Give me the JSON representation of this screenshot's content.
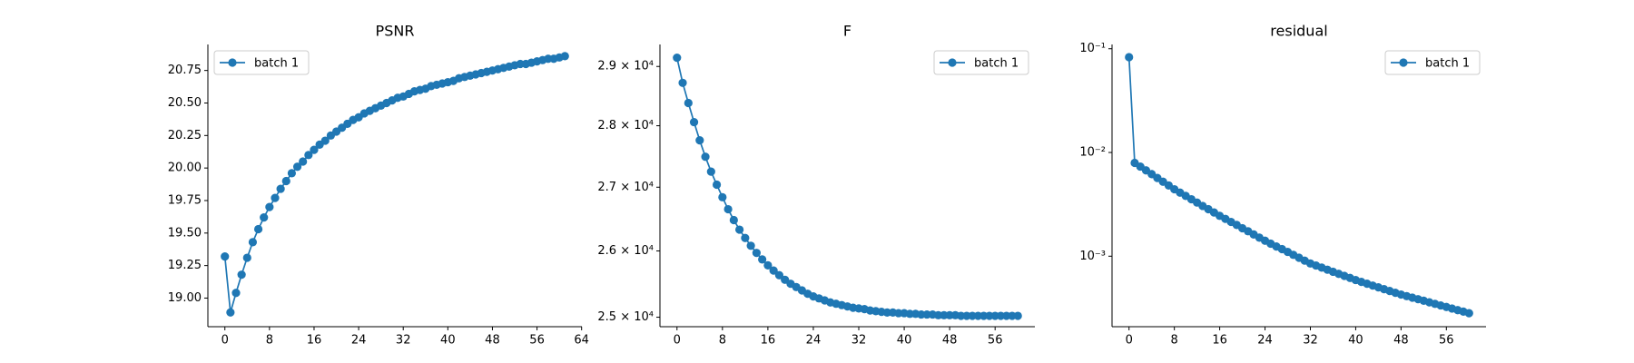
{
  "chart_data": [
    {
      "type": "line",
      "title": "PSNR",
      "legend": "upper left",
      "yscale": "linear",
      "x": [
        0,
        1,
        2,
        3,
        4,
        5,
        6,
        7,
        8,
        9,
        10,
        11,
        12,
        13,
        14,
        15,
        16,
        17,
        18,
        19,
        20,
        21,
        22,
        23,
        24,
        25,
        26,
        27,
        28,
        29,
        30,
        31,
        32,
        33,
        34,
        35,
        36,
        37,
        38,
        39,
        40,
        41,
        42,
        43,
        44,
        45,
        46,
        47,
        48,
        49,
        50,
        51,
        52,
        53,
        54,
        55,
        56,
        57,
        58,
        59,
        60,
        61
      ],
      "series": [
        {
          "name": "batch 1",
          "color": "#1f77b4",
          "values": [
            19.32,
            18.89,
            19.04,
            19.18,
            19.31,
            19.43,
            19.53,
            19.62,
            19.7,
            19.77,
            19.84,
            19.9,
            19.96,
            20.01,
            20.05,
            20.1,
            20.14,
            20.18,
            20.21,
            20.25,
            20.28,
            20.31,
            20.34,
            20.37,
            20.39,
            20.42,
            20.44,
            20.46,
            20.48,
            20.5,
            20.52,
            20.54,
            20.55,
            20.57,
            20.59,
            20.6,
            20.61,
            20.63,
            20.64,
            20.65,
            20.66,
            20.67,
            20.69,
            20.7,
            20.71,
            20.72,
            20.73,
            20.74,
            20.75,
            20.76,
            20.77,
            20.78,
            20.79,
            20.8,
            20.8,
            20.81,
            20.82,
            20.83,
            20.84,
            20.84,
            20.85,
            20.86
          ]
        }
      ],
      "xlim": [
        -3.05,
        64.05
      ],
      "xticks": [
        0,
        8,
        16,
        24,
        32,
        40,
        48,
        56,
        64
      ],
      "ylim": [
        18.78,
        20.95
      ],
      "yticks": [
        {
          "value": 19,
          "label": "19.00"
        },
        19.25,
        {
          "value": 19.5,
          "label": "19.50"
        },
        19.75,
        {
          "value": 20,
          "label": "20.00"
        },
        20.25,
        {
          "value": 20.5,
          "label": "20.50"
        },
        20.75
      ]
    },
    {
      "type": "line",
      "title": "F",
      "legend": "upper right",
      "yscale": "log",
      "x": [
        0,
        1,
        2,
        3,
        4,
        5,
        6,
        7,
        8,
        9,
        10,
        11,
        12,
        13,
        14,
        15,
        16,
        17,
        18,
        19,
        20,
        21,
        22,
        23,
        24,
        25,
        26,
        27,
        28,
        29,
        30,
        31,
        32,
        33,
        34,
        35,
        36,
        37,
        38,
        39,
        40,
        41,
        42,
        43,
        44,
        45,
        46,
        47,
        48,
        49,
        50,
        51,
        52,
        53,
        54,
        55,
        56,
        57,
        58,
        59,
        60
      ],
      "series": [
        {
          "name": "batch 1",
          "color": "#1f77b4",
          "values": [
            29150,
            28720,
            28380,
            28060,
            27760,
            27490,
            27250,
            27040,
            26840,
            26650,
            26480,
            26330,
            26200,
            26080,
            25970,
            25870,
            25780,
            25700,
            25630,
            25560,
            25500,
            25450,
            25400,
            25350,
            25310,
            25280,
            25250,
            25220,
            25200,
            25180,
            25160,
            25140,
            25130,
            25120,
            25100,
            25090,
            25080,
            25070,
            25070,
            25060,
            25060,
            25050,
            25050,
            25040,
            25040,
            25040,
            25030,
            25030,
            25030,
            25030,
            25020,
            25020,
            25020,
            25020,
            25020,
            25020,
            25020,
            25020,
            25020,
            25020,
            25020
          ]
        }
      ],
      "xlim": [
        -3,
        63
      ],
      "xticks": [
        0,
        8,
        16,
        24,
        32,
        40,
        48,
        56
      ],
      "ylim": [
        24860,
        29380
      ],
      "yticks": [
        {
          "value": 25000,
          "label": "2.5 × 10⁴"
        },
        {
          "value": 26000,
          "label": "2.6 × 10⁴"
        },
        {
          "value": 27000,
          "label": "2.7 × 10⁴"
        },
        {
          "value": 28000,
          "label": "2.8 × 10⁴"
        },
        {
          "value": 29000,
          "label": "2.9 × 10⁴"
        }
      ]
    },
    {
      "type": "line",
      "title": "residual",
      "legend": "upper right",
      "yscale": "log",
      "x": [
        0,
        1,
        2,
        3,
        4,
        5,
        6,
        7,
        8,
        9,
        10,
        11,
        12,
        13,
        14,
        15,
        16,
        17,
        18,
        19,
        20,
        21,
        22,
        23,
        24,
        25,
        26,
        27,
        28,
        29,
        30,
        31,
        32,
        33,
        34,
        35,
        36,
        37,
        38,
        39,
        40,
        41,
        42,
        43,
        44,
        45,
        46,
        47,
        48,
        49,
        50,
        51,
        52,
        53,
        54,
        55,
        56,
        57,
        58,
        59,
        60
      ],
      "series": [
        {
          "name": "batch 1",
          "color": "#1f77b4",
          "values": [
            0.083,
            0.00794,
            0.00731,
            0.00672,
            0.00618,
            0.00568,
            0.00522,
            0.00481,
            0.00442,
            0.0041,
            0.00381,
            0.00354,
            0.00329,
            0.00305,
            0.00284,
            0.00264,
            0.00245,
            0.00229,
            0.00214,
            0.002,
            0.00186,
            0.00174,
            0.00162,
            0.00151,
            0.00141,
            0.00132,
            0.00124,
            0.00117,
            0.0011,
            0.00103,
            0.000966,
            0.000906,
            0.000851,
            0.000813,
            0.000776,
            0.000741,
            0.000708,
            0.000676,
            0.000646,
            0.000617,
            0.000589,
            0.000565,
            0.000543,
            0.000521,
            0.000501,
            0.000481,
            0.000462,
            0.000444,
            0.000427,
            0.000412,
            0.000398,
            0.000385,
            0.000372,
            0.000359,
            0.000347,
            0.000335,
            0.000324,
            0.000313,
            0.000302,
            0.000292,
            0.000282
          ]
        }
      ],
      "xlim": [
        -3,
        63
      ],
      "xticks": [
        0,
        8,
        16,
        24,
        32,
        40,
        48,
        56
      ],
      "ylim": [
        0.000209,
        0.11
      ],
      "yticks": [
        {
          "value": 0.001,
          "label": "10⁻³"
        },
        {
          "value": 0.01,
          "label": "10⁻²"
        },
        {
          "value": 0.1,
          "label": "10⁻¹"
        }
      ]
    }
  ]
}
